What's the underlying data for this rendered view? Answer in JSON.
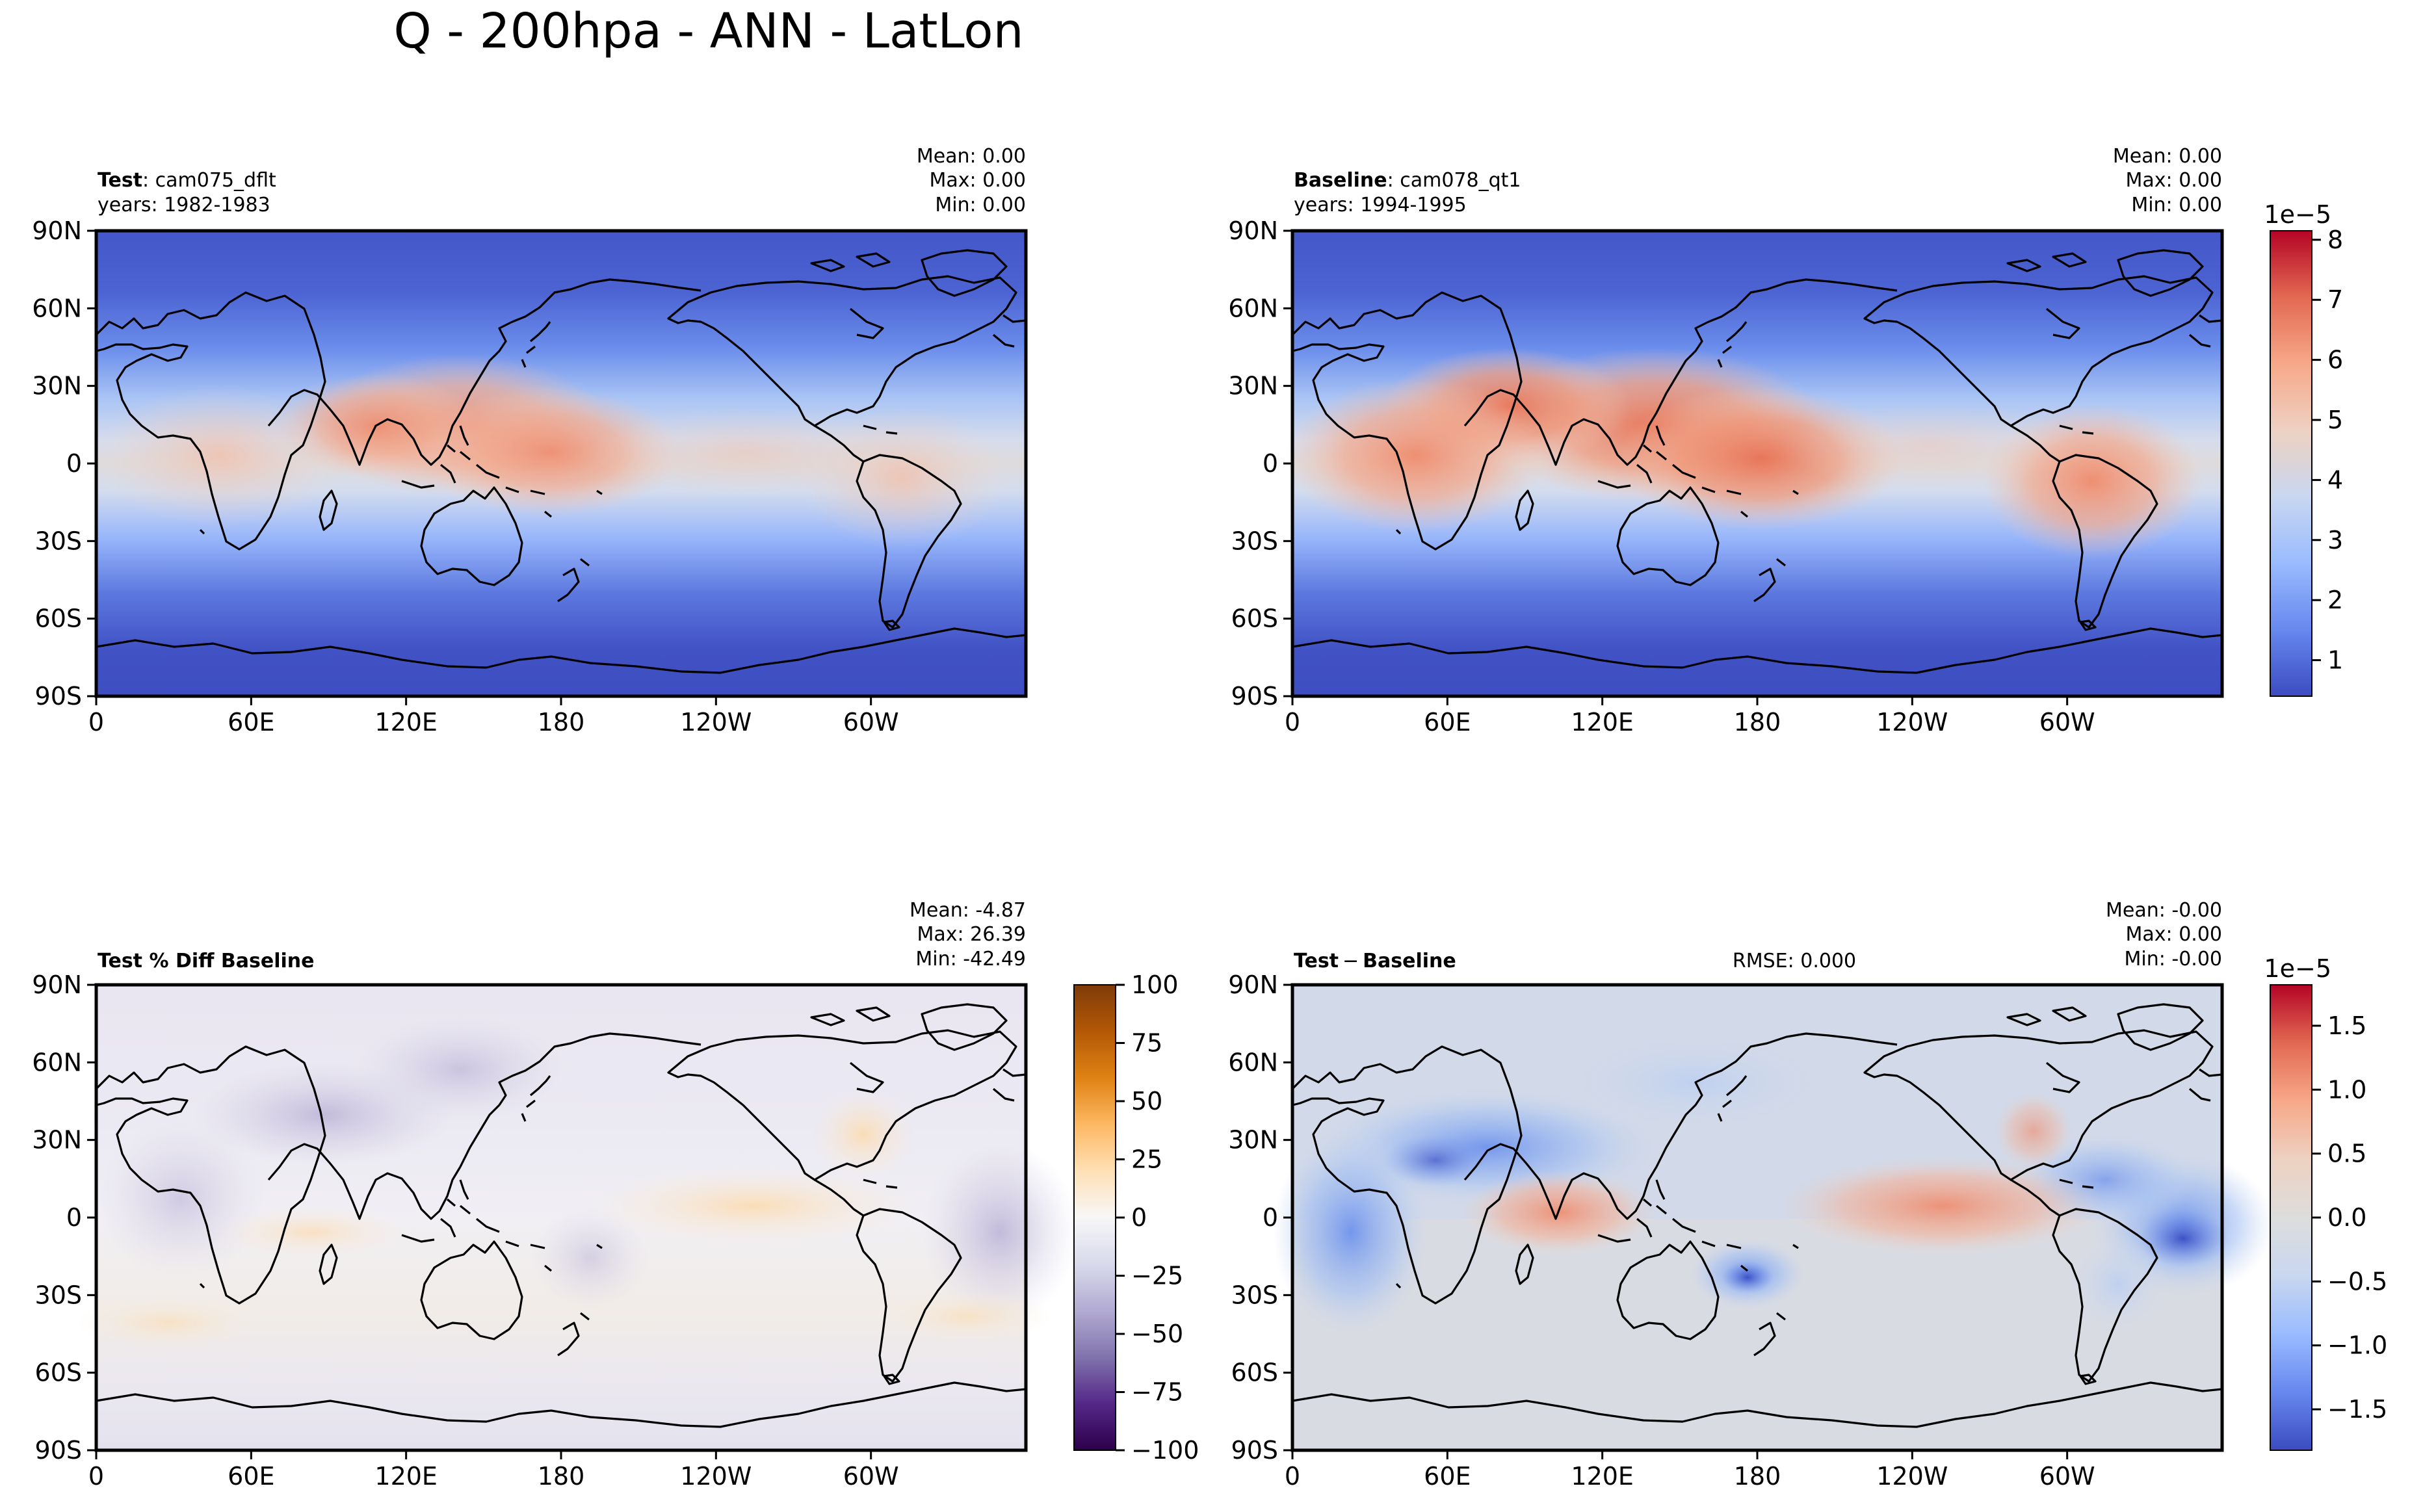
{
  "figure_title": "Q - 200hpa - ANN - LatLon",
  "chart_data": [
    {
      "type": "heatmap",
      "panel": "top-left",
      "label_bold": "Test",
      "label_text": ": cam075_dflt",
      "label_sub": "years: 1982-1983",
      "stats": [
        "Mean:  0.00",
        "Max:  0.00",
        "Min:  0.00"
      ],
      "x_ticks": [
        "0",
        "60E",
        "120E",
        "180",
        "120W",
        "60W"
      ],
      "y_ticks": [
        "90N",
        "60N",
        "30N",
        "0",
        "30S",
        "60S",
        "90S"
      ],
      "xlim": [
        0,
        360
      ],
      "ylim": [
        -90,
        90
      ],
      "field_description": "specific humidity, peak ~5.5e-5 over tropical west Pacific / south Asia",
      "colormap": "coolwarm",
      "shared_colorbar": "top-right"
    },
    {
      "type": "heatmap",
      "panel": "top-right",
      "label_bold": "Baseline",
      "label_text": ": cam078_qt1",
      "label_sub": "years: 1994-1995",
      "stats": [
        "Mean:  0.00",
        "Max:  0.00",
        "Min:  0.00"
      ],
      "x_ticks": [
        "0",
        "60E",
        "120E",
        "180",
        "120W",
        "60W"
      ],
      "y_ticks": [
        "90N",
        "60N",
        "30N",
        "0",
        "30S",
        "60S",
        "90S"
      ],
      "xlim": [
        0,
        360
      ],
      "ylim": [
        -90,
        90
      ],
      "colormap": "coolwarm",
      "colorbar": {
        "exponent_label": "1e−5",
        "ticks": [
          "1",
          "2",
          "3",
          "4",
          "5",
          "6",
          "7",
          "8"
        ],
        "tick_values": [
          1,
          2,
          3,
          4,
          5,
          6,
          7,
          8
        ],
        "range": [
          0.4,
          8.15
        ],
        "colors": [
          "#3b4cc0",
          "#6788ee",
          "#9abbff",
          "#c9d7f0",
          "#edd1c2",
          "#f7a889",
          "#e26952",
          "#b40426"
        ]
      }
    },
    {
      "type": "heatmap",
      "panel": "bottom-left",
      "label_bold": "Test % Diff Baseline",
      "stats": [
        "Mean: -4.87",
        "Max: 26.39",
        "Min: -42.49"
      ],
      "x_ticks": [
        "0",
        "60E",
        "120E",
        "180",
        "120W",
        "60W"
      ],
      "y_ticks": [
        "90N",
        "60N",
        "30N",
        "0",
        "30S",
        "60S",
        "90S"
      ],
      "xlim": [
        0,
        360
      ],
      "ylim": [
        -90,
        90
      ],
      "colormap": "PuOr_r",
      "colorbar": {
        "ticks": [
          "100",
          "75",
          "50",
          "25",
          "0",
          "−25",
          "−50",
          "−75",
          "−100"
        ],
        "tick_values": [
          100,
          75,
          50,
          25,
          0,
          -25,
          -50,
          -75,
          -100
        ],
        "range": [
          -100,
          100
        ],
        "colors": [
          "#2d004b",
          "#542788",
          "#8073ac",
          "#b2abd2",
          "#d8daeb",
          "#f7f7f7",
          "#fee0b6",
          "#fdb863",
          "#e08214",
          "#b35806",
          "#7f3b08"
        ]
      }
    },
    {
      "type": "heatmap",
      "panel": "bottom-right",
      "label_bold": "Test",
      "label_minus": "−",
      "label_bold2": "Baseline",
      "rmse": "RMSE: 0.000",
      "stats": [
        "Mean: -0.00",
        "Max:  0.00",
        "Min: -0.00"
      ],
      "x_ticks": [
        "0",
        "60E",
        "120E",
        "180",
        "120W",
        "60W"
      ],
      "y_ticks": [
        "90N",
        "60N",
        "30N",
        "0",
        "30S",
        "60S",
        "90S"
      ],
      "xlim": [
        0,
        360
      ],
      "ylim": [
        -90,
        90
      ],
      "colormap": "coolwarm",
      "colorbar": {
        "exponent_label": "1e−5",
        "ticks": [
          "1.5",
          "1.0",
          "0.5",
          "0.0",
          "−0.5",
          "−1.0",
          "−1.5"
        ],
        "tick_values": [
          1.5,
          1.0,
          0.5,
          0.0,
          -0.5,
          -1.0,
          -1.5
        ],
        "range": [
          -1.82,
          1.82
        ],
        "colors": [
          "#3b4cc0",
          "#6788ee",
          "#9abbff",
          "#c9d7f0",
          "#dddddd",
          "#edd1c2",
          "#f7a889",
          "#e26952",
          "#b40426"
        ]
      }
    }
  ]
}
